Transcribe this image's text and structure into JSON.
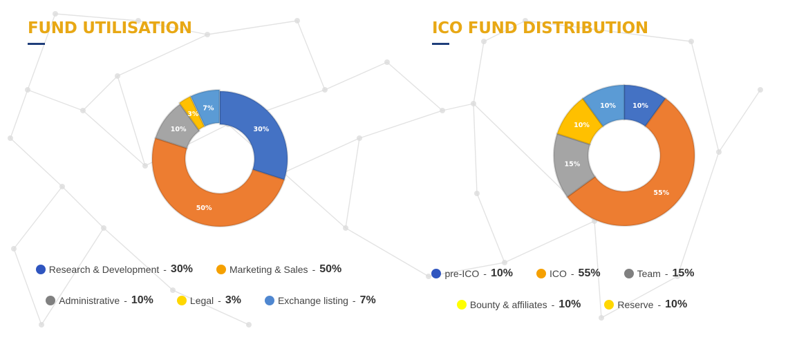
{
  "chart_data": [
    {
      "type": "pie",
      "title": "FUND UTILISATION",
      "hole": "donut",
      "slices": [
        {
          "name": "Research & Development",
          "value": 30,
          "label": "30%",
          "value_label": "30%",
          "color": "#4472c4"
        },
        {
          "name": "Marketing & Sales",
          "value": 50,
          "label": "50%",
          "value_label": "50%",
          "color": "#ed7d31"
        },
        {
          "name": "Administrative",
          "value": 10,
          "label": "10%",
          "value_label": "10%",
          "color": "#a5a5a5"
        },
        {
          "name": "Legal",
          "value": 3,
          "label": "3%",
          "value_label": "3%",
          "color": "#ffc000"
        },
        {
          "name": "Exchange listing",
          "value": 7,
          "label": "7%",
          "value_label": "7%",
          "color": "#5b9bd5"
        }
      ],
      "legend": {
        "placement": "bottom",
        "dot_colors": [
          "#2f55bf",
          "#f5a000",
          "#808080",
          "#ffd700",
          "#4f87d0"
        ]
      }
    },
    {
      "type": "pie",
      "title": "ICO FUND DISTRIBUTION",
      "hole": "donut",
      "slices": [
        {
          "name": "pre-ICO",
          "value": 10,
          "label": "10%",
          "value_label": "10%",
          "color": "#4472c4"
        },
        {
          "name": "ICO",
          "value": 55,
          "label": "55%",
          "value_label": "55%",
          "color": "#ed7d31"
        },
        {
          "name": "Team",
          "value": 15,
          "label": "15%",
          "value_label": "15%",
          "color": "#a5a5a5"
        },
        {
          "name": "Bounty & affiliates",
          "value": 10,
          "label": "10%",
          "value_label": "10%",
          "color": "#ffc000"
        },
        {
          "name": "Reserve",
          "value": 10,
          "label": "10%",
          "value_label": "10%",
          "color": "#5b9bd5"
        }
      ],
      "legend": {
        "placement": "bottom",
        "dot_colors": [
          "#2f55bf",
          "#f5a000",
          "#808080",
          "#ffff00",
          "#ffd700"
        ]
      }
    }
  ],
  "legend_separator": "-",
  "theme": {
    "title_color": "#e8a815",
    "underline_color": "#1f3e7a",
    "background_network_color": "#dcdcdc"
  }
}
